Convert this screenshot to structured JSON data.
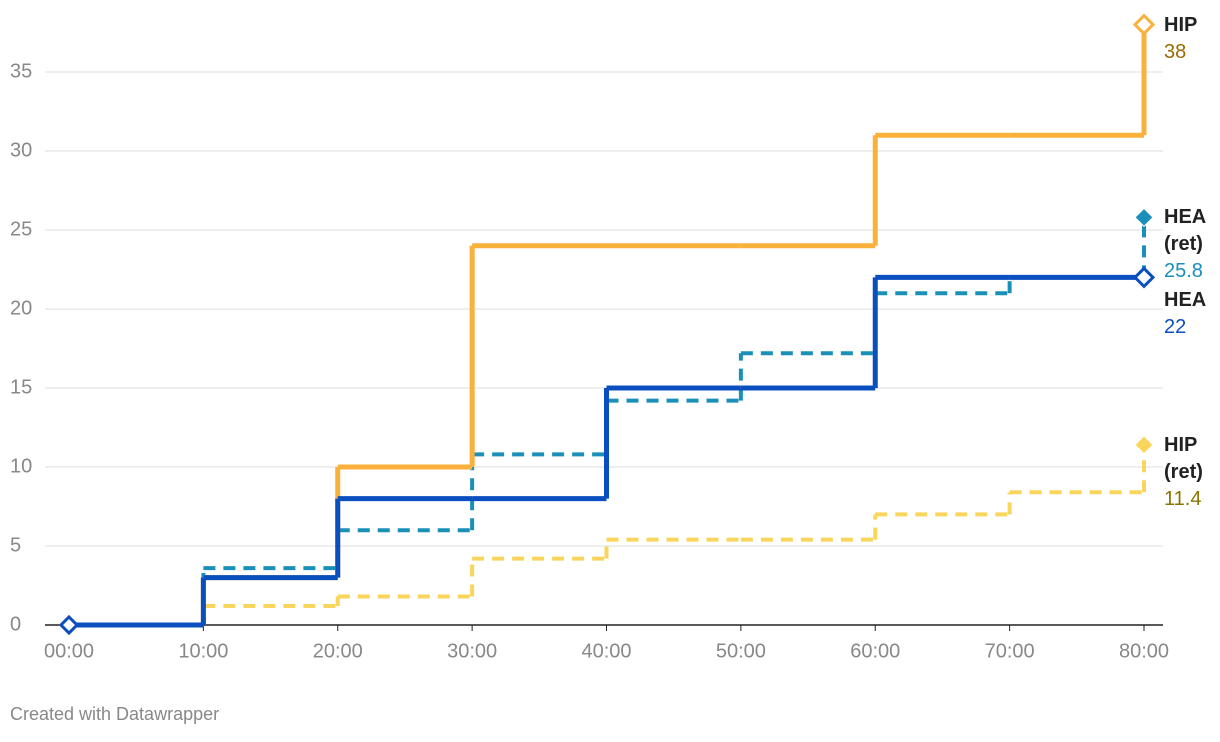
{
  "chart_data": {
    "type": "step-line",
    "x": [
      0,
      10,
      20,
      30,
      40,
      50,
      60,
      70,
      80
    ],
    "xlim": [
      0,
      80
    ],
    "xticks": [
      {
        "value": 0,
        "label": "00:00"
      },
      {
        "value": 10,
        "label": "10:00"
      },
      {
        "value": 20,
        "label": "20:00"
      },
      {
        "value": 30,
        "label": "30:00"
      },
      {
        "value": 40,
        "label": "40:00"
      },
      {
        "value": 50,
        "label": "50:00"
      },
      {
        "value": 60,
        "label": "60:00"
      },
      {
        "value": 70,
        "label": "70:00"
      },
      {
        "value": 80,
        "label": "80:00"
      }
    ],
    "ylim": [
      0,
      38
    ],
    "yticks": [
      0,
      5,
      10,
      15,
      20,
      25,
      30,
      35
    ],
    "grid": true,
    "series": [
      {
        "name": "HIP (ret)",
        "color": "#f9d55b",
        "label_color": "#8a7400",
        "dashed": true,
        "values": [
          0,
          1.2,
          1.8,
          4.2,
          5.4,
          5.4,
          7,
          8.4,
          11.4
        ]
      },
      {
        "name": "HEA (ret)",
        "color": "#1a8fb8",
        "label_color": "#1a8fb8",
        "dashed": true,
        "values": [
          0,
          3.6,
          6,
          10.8,
          14.2,
          17.2,
          21,
          22,
          25.8
        ]
      },
      {
        "name": "HIP",
        "color": "#f9b13c",
        "label_color": "#9b6a00",
        "dashed": false,
        "values": [
          0,
          3,
          10,
          24,
          24,
          24,
          31,
          31,
          38
        ]
      },
      {
        "name": "HEA",
        "color": "#0a4fbf",
        "label_color": "#0a4fbf",
        "dashed": false,
        "values": [
          0,
          3,
          8,
          8,
          15,
          15,
          22,
          22,
          22
        ]
      }
    ],
    "footer": "Created with Datawrapper"
  }
}
